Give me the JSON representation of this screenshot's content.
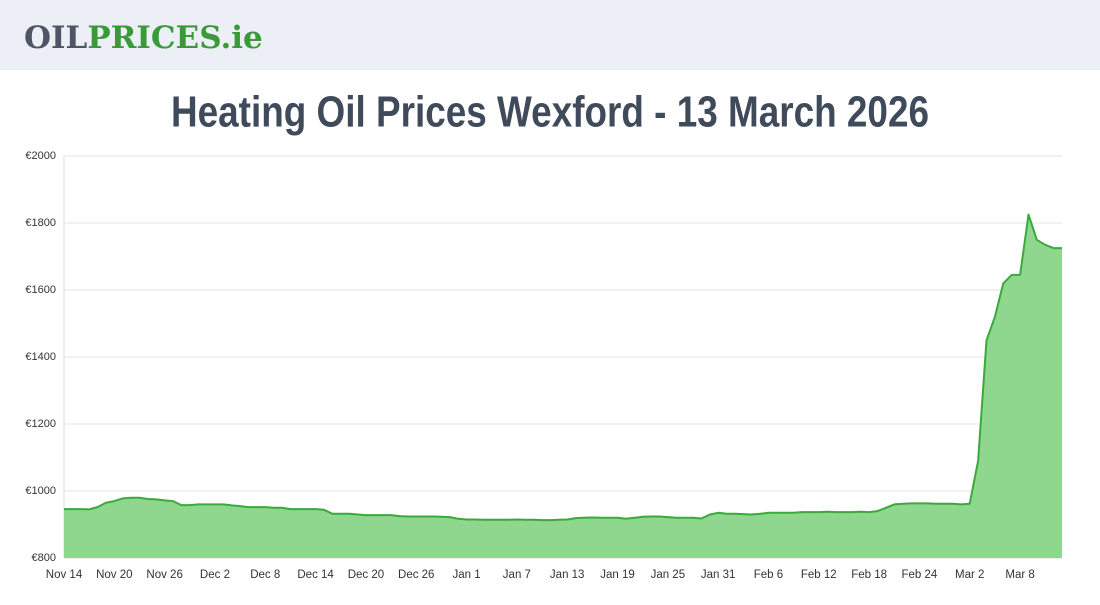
{
  "header": {
    "logo": [
      "OIL",
      "PRICES.ie"
    ]
  },
  "chart_data": {
    "type": "area",
    "title": "Heating Oil Prices Wexford - 13 March 2026",
    "categories": [
      "Nov 14",
      null,
      null,
      null,
      null,
      null,
      "Nov 20",
      null,
      null,
      null,
      null,
      null,
      "Nov 26",
      null,
      null,
      null,
      null,
      null,
      "Dec 2",
      null,
      null,
      null,
      null,
      null,
      "Dec 8",
      null,
      null,
      null,
      null,
      null,
      "Dec 14",
      null,
      null,
      null,
      null,
      null,
      "Dec 20",
      null,
      null,
      null,
      null,
      null,
      "Dec 26",
      null,
      null,
      null,
      null,
      null,
      "Jan 1",
      null,
      null,
      null,
      null,
      null,
      "Jan 7",
      null,
      null,
      null,
      null,
      null,
      "Jan 13",
      null,
      null,
      null,
      null,
      null,
      "Jan 19",
      null,
      null,
      null,
      null,
      null,
      "Jan 25",
      null,
      null,
      null,
      null,
      null,
      "Jan 31",
      null,
      null,
      null,
      null,
      null,
      "Feb 6",
      null,
      null,
      null,
      null,
      null,
      "Feb 12",
      null,
      null,
      null,
      null,
      null,
      "Feb 18",
      null,
      null,
      null,
      null,
      null,
      "Feb 24",
      null,
      null,
      null,
      null,
      null,
      "Mar 2",
      null,
      null,
      null,
      null,
      null,
      "Mar 8",
      null,
      null,
      null,
      null,
      null
    ],
    "values": [
      946,
      946,
      946,
      945,
      952,
      965,
      970,
      978,
      980,
      980,
      976,
      975,
      972,
      970,
      958,
      958,
      960,
      960,
      960,
      960,
      957,
      955,
      952,
      952,
      952,
      950,
      950,
      946,
      946,
      946,
      946,
      944,
      932,
      932,
      932,
      930,
      928,
      928,
      928,
      928,
      925,
      924,
      924,
      924,
      924,
      923,
      922,
      917,
      915,
      915,
      914,
      914,
      914,
      914,
      915,
      914,
      914,
      913,
      913,
      914,
      915,
      919,
      920,
      921,
      920,
      920,
      920,
      917,
      920,
      923,
      924,
      924,
      922,
      920,
      920,
      920,
      918,
      930,
      935,
      932,
      932,
      931,
      930,
      932,
      935,
      935,
      935,
      935,
      937,
      937,
      937,
      938,
      937,
      937,
      937,
      938,
      937,
      940,
      950,
      960,
      962,
      963,
      963,
      963,
      962,
      962,
      962,
      960,
      962,
      1090,
      1450,
      1520,
      1620,
      1645,
      1645,
      1825,
      1750,
      1735,
      1725,
      1725
    ],
    "color": "#3aaa3a",
    "fill": "#8fd68f",
    "ylim": [
      800,
      2000
    ],
    "yticks": [
      {
        "value": 800,
        "label": "€800"
      },
      {
        "value": 1000,
        "label": "€1000"
      },
      {
        "value": 1200,
        "label": "€1200"
      },
      {
        "value": 1400,
        "label": "€1400"
      },
      {
        "value": 1600,
        "label": "€1600"
      },
      {
        "value": 1800,
        "label": "€1800"
      },
      {
        "value": 2000,
        "label": "€2000"
      }
    ],
    "grid": true
  }
}
